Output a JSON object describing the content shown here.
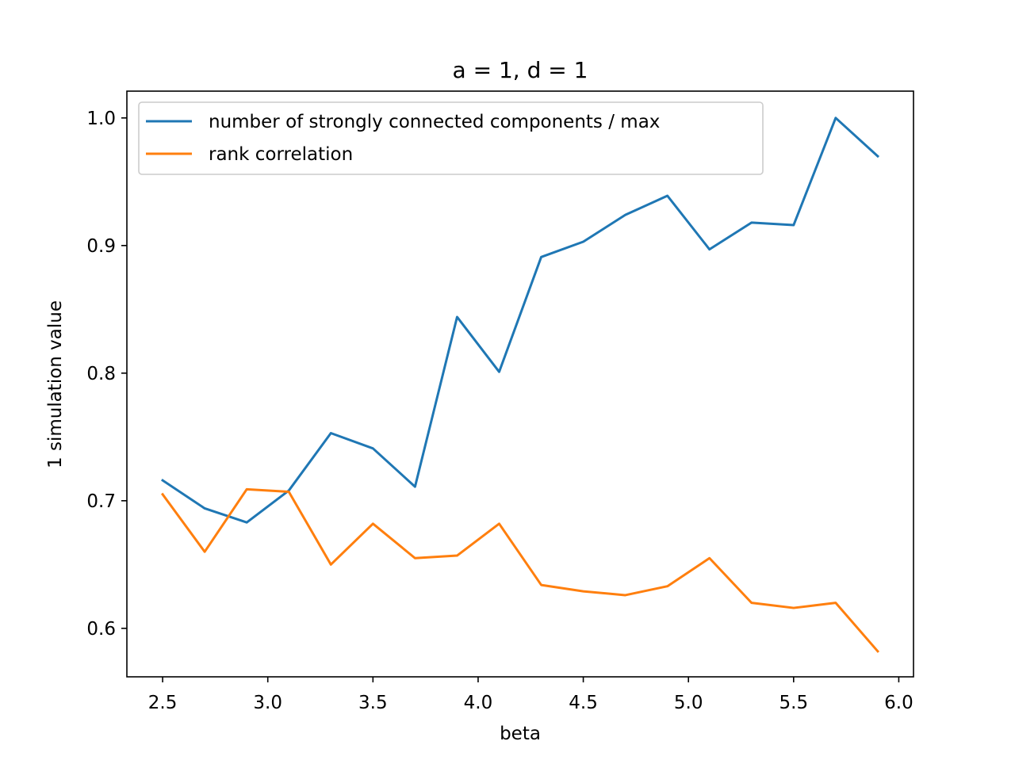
{
  "chart_data": {
    "type": "line",
    "title": "a = 1, d = 1",
    "xlabel": "beta",
    "ylabel": "1 simulation value",
    "xlim": [
      2.33,
      6.07
    ],
    "ylim": [
      0.562,
      1.021
    ],
    "xticks": [
      2.5,
      3.0,
      3.5,
      4.0,
      4.5,
      5.0,
      5.5,
      6.0
    ],
    "xtick_labels": [
      "2.5",
      "3.0",
      "3.5",
      "4.0",
      "4.5",
      "5.0",
      "5.5",
      "6.0"
    ],
    "yticks": [
      0.6,
      0.7,
      0.8,
      0.9,
      1.0
    ],
    "ytick_labels": [
      "0.6",
      "0.7",
      "0.8",
      "0.9",
      "1.0"
    ],
    "grid": false,
    "legend_position": "top-left",
    "x": [
      2.5,
      2.7,
      2.9,
      3.1,
      3.3,
      3.5,
      3.7,
      3.9,
      4.1,
      4.3,
      4.5,
      4.7,
      4.9,
      5.1,
      5.3,
      5.5,
      5.7,
      5.9
    ],
    "series": [
      {
        "name": "number of strongly connected components / max",
        "color": "#1f77b4",
        "values": [
          0.716,
          0.694,
          0.683,
          0.708,
          0.753,
          0.741,
          0.711,
          0.844,
          0.801,
          0.891,
          0.903,
          0.924,
          0.939,
          0.897,
          0.918,
          0.916,
          1.0,
          0.97
        ]
      },
      {
        "name": "rank correlation",
        "color": "#ff7f0e",
        "values": [
          0.705,
          0.66,
          0.709,
          0.707,
          0.65,
          0.682,
          0.655,
          0.657,
          0.682,
          0.634,
          0.629,
          0.626,
          0.633,
          0.655,
          0.62,
          0.616,
          0.62,
          0.582
        ]
      }
    ]
  }
}
